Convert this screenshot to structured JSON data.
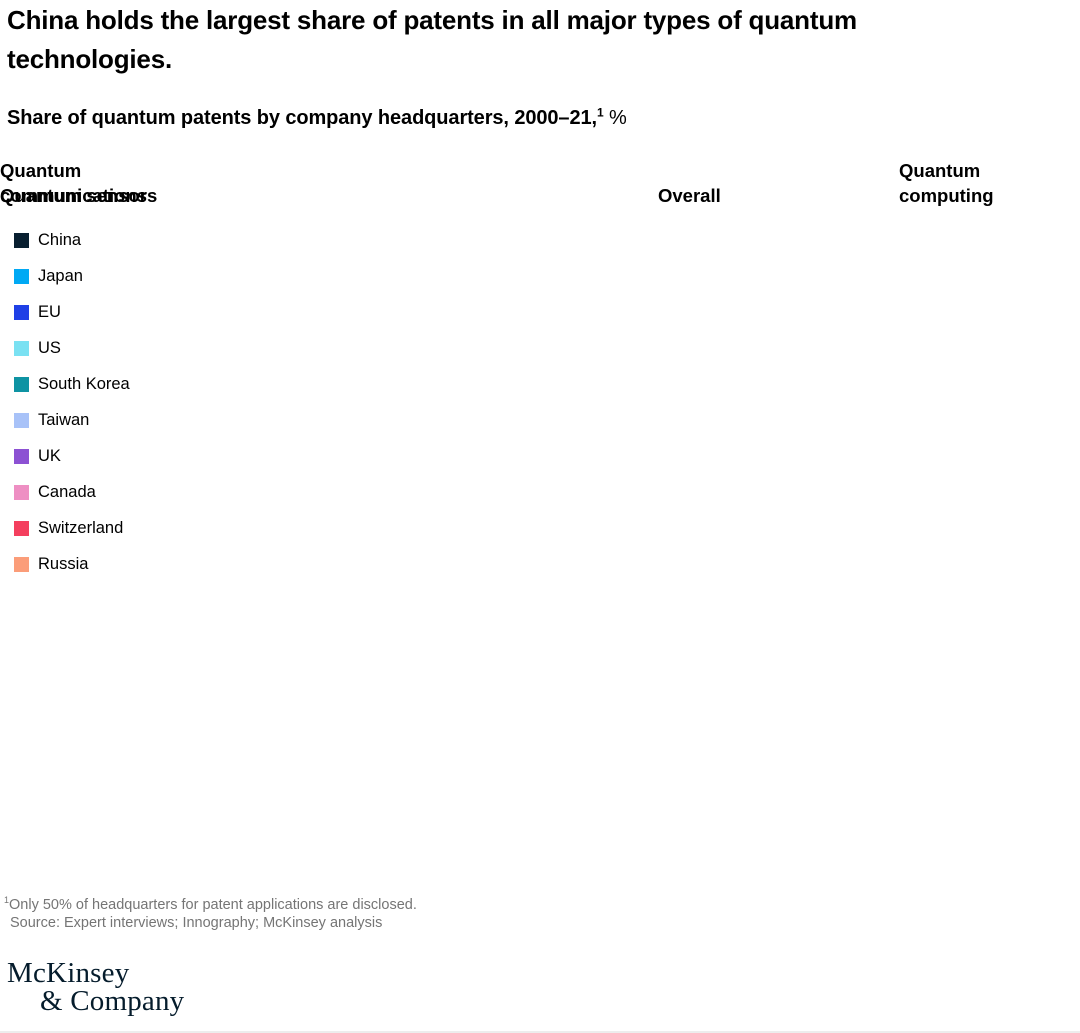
{
  "page": {
    "title": "China holds the largest share of patents in all major types of quantum technologies.",
    "subtitle": "Share of quantum patents by company headquarters, 2000–21,",
    "subtitle_footnote_marker": "1",
    "subtitle_unit": " %"
  },
  "columns": {
    "headers": [
      "Overall",
      "Quantum computing",
      "Quantum communications",
      "Quantum sensors"
    ]
  },
  "legend": {
    "items": [
      {
        "label": "China",
        "color": "#081f30"
      },
      {
        "label": "Japan",
        "color": "#00a9f4"
      },
      {
        "label": "EU",
        "color": "#1f40e6"
      },
      {
        "label": "US",
        "color": "#7ae1f2"
      },
      {
        "label": "South Korea",
        "color": "#0e93a3"
      },
      {
        "label": "Taiwan",
        "color": "#a8c2f8"
      },
      {
        "label": "UK",
        "color": "#8c51d3"
      },
      {
        "label": "Canada",
        "color": "#ee8fc3"
      },
      {
        "label": "Switzerland",
        "color": "#f43f5e"
      },
      {
        "label": "Russia",
        "color": "#fb9d79"
      }
    ]
  },
  "footnotes": {
    "marker": "1",
    "note": "Only 50% of headquarters for patent applications are disclosed.",
    "source": "Source: Expert interviews; Innography; McKinsey analysis"
  },
  "logo": {
    "line1": "McKinsey",
    "line2": "& Company"
  },
  "chart_data": {
    "type": "bar",
    "title": "Share of quantum patents by company headquarters, 2000–21, %",
    "categories": [
      "Overall",
      "Quantum computing",
      "Quantum communications",
      "Quantum sensors"
    ],
    "series": [
      {
        "name": "China",
        "color": "#081f30",
        "values": []
      },
      {
        "name": "Japan",
        "color": "#00a9f4",
        "values": []
      },
      {
        "name": "EU",
        "color": "#1f40e6",
        "values": []
      },
      {
        "name": "US",
        "color": "#7ae1f2",
        "values": []
      },
      {
        "name": "South Korea",
        "color": "#0e93a3",
        "values": []
      },
      {
        "name": "Taiwan",
        "color": "#a8c2f8",
        "values": []
      },
      {
        "name": "UK",
        "color": "#8c51d3",
        "values": []
      },
      {
        "name": "Canada",
        "color": "#ee8fc3",
        "values": []
      },
      {
        "name": "Switzerland",
        "color": "#f43f5e",
        "values": []
      },
      {
        "name": "Russia",
        "color": "#fb9d79",
        "values": []
      }
    ],
    "legend_position": "left",
    "grid": false,
    "plot_area_rendered": false
  }
}
